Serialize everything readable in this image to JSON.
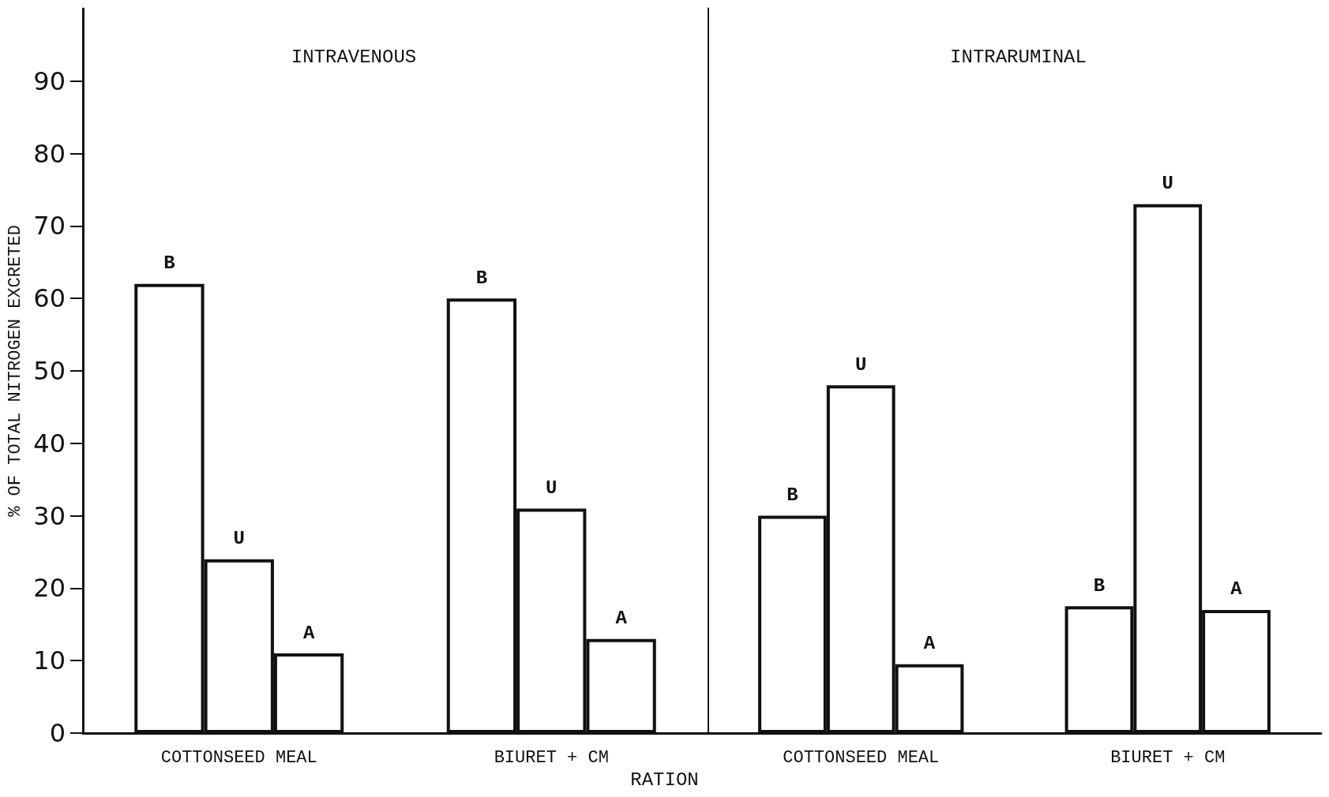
{
  "chart_data": [
    {
      "type": "bar",
      "title": "INTRAVENOUS",
      "ylabel": "% OF TOTAL NITROGEN EXCRETED",
      "xlabel": "RATION",
      "categories": [
        "COTTONSEED MEAL",
        "BIURET + CM"
      ],
      "ylim": [
        0,
        100
      ],
      "yticks": [
        0,
        10,
        20,
        30,
        40,
        50,
        60,
        70,
        80,
        90
      ],
      "grid": false,
      "legend": false,
      "series": [
        {
          "name": "B",
          "color": "#ffffff",
          "values": [
            62,
            60
          ]
        },
        {
          "name": "U",
          "color": "#ffffff",
          "values": [
            24,
            31
          ]
        },
        {
          "name": "A",
          "color": "#ffffff",
          "values": [
            11,
            13
          ]
        }
      ]
    },
    {
      "type": "bar",
      "title": "INTRARUMINAL",
      "categories": [
        "COTTONSEED MEAL",
        "BIURET + CM"
      ],
      "ylim": [
        0,
        100
      ],
      "yticks": [
        0,
        10,
        20,
        30,
        40,
        50,
        60,
        70,
        80,
        90
      ],
      "tick_labels": "x",
      "grid": false,
      "legend": false,
      "series": [
        {
          "name": "B",
          "color": "#ffffff",
          "values": [
            30,
            17.5
          ]
        },
        {
          "name": "U",
          "color": "#ffffff",
          "values": [
            48,
            73
          ]
        },
        {
          "name": "A",
          "color": "#ffffff",
          "values": [
            9.5,
            17
          ]
        }
      ]
    }
  ]
}
